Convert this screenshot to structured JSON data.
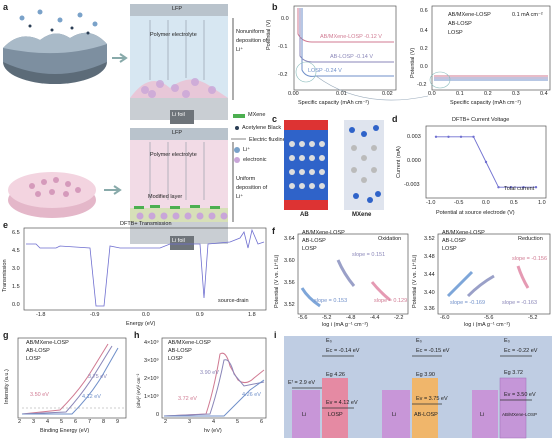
{
  "panels": {
    "a": {
      "label": "a",
      "lfp": "LFP",
      "poly": "Polymer electrolyte",
      "nonuniform": "Nonuniform deposition of Li⁺",
      "mxene": "MXene",
      "ab": "Acetylene Black",
      "flux": "Electric fluxline",
      "li": "Li⁺",
      "electronic": "electronic",
      "lifoil": "Li foil",
      "modified": "Modified layer",
      "uniform": "Uniform deposition of Li⁺"
    },
    "b": {
      "label": "b",
      "xlabel": "Specific capacity (mAh cm⁻²)",
      "ylabel": "Potential (V)",
      "cd": "0.1 mA cm⁻²",
      "series": [
        {
          "name": "AB/MXene-LOSP",
          "color": "#d07a92",
          "annot": "AB/MXene-LOSP -0.12 V"
        },
        {
          "name": "AB-LOSP",
          "color": "#8a86b8",
          "annot": "AB-LOSP -0.14 V"
        },
        {
          "name": "LOSP",
          "color": "#6f8fc9",
          "annot": "LOSP -0.24 V"
        }
      ],
      "left": {
        "xticks": [
          "0.00",
          "0.01",
          "0.02"
        ],
        "yticks": [
          "0.0",
          "-0.1",
          "-0.2"
        ]
      },
      "right": {
        "xticks": [
          "0.0",
          "0.1",
          "0.2",
          "0.3",
          "0.4"
        ],
        "yticks": [
          "0.6",
          "0.4",
          "0.2",
          "0.0",
          "-0.2"
        ]
      }
    },
    "c": {
      "label": "c",
      "ab": "AB",
      "mxene": "MXene"
    },
    "d": {
      "label": "d",
      "title": "DFTB+ Current Voltage",
      "xlabel": "Potential at source electrode (V)",
      "ylabel": "Current (mA)",
      "legend": "Total current",
      "xticks": [
        "-1.0",
        "-0.5",
        "0.0",
        "0.5",
        "1.0"
      ],
      "yticks": [
        "0.003",
        "0.000",
        "-0.003"
      ],
      "chart_data": {
        "type": "line",
        "x": [
          -1.0,
          -0.75,
          -0.5,
          -0.25,
          0.0,
          0.25,
          0.5,
          0.75,
          1.0
        ],
        "y": [
          0.0035,
          0.0035,
          0.0035,
          0.0035,
          0.0,
          -0.0035,
          -0.0035,
          -0.0035,
          -0.0035
        ]
      }
    },
    "e": {
      "label": "e",
      "title": "DFTB+ Transmission",
      "xlabel": "Energy (eV)",
      "ylabel": "Transmission",
      "legend": "source-drain",
      "xticks": [
        "-1.8",
        "-0.9",
        "0.0",
        "0.9",
        "1.8"
      ],
      "yticks": [
        "6.5",
        "4.5",
        "3.0",
        "1.5",
        "0.0"
      ]
    },
    "f": {
      "label": "f",
      "ylabel": "Potential (V vs. Li⁺/Li)",
      "xlabel": "log i (mA g⁻¹ cm⁻²)",
      "ox": {
        "title": "Oxidation",
        "slopes": [
          "slope = 0.151",
          "slope = 0.153",
          "slope = 0.129"
        ],
        "yticks": [
          "3.64",
          "3.60",
          "3.56",
          "3.52"
        ],
        "xticks": [
          "-5.6",
          "-5.2",
          "-4.8",
          "-4.4",
          "-2.2"
        ]
      },
      "red": {
        "title": "Reduction",
        "slopes": [
          "slope = -0.156",
          "slope = -0.169",
          "slope = -0.163"
        ],
        "yticks": [
          "3.52",
          "3.48",
          "3.44",
          "3.40",
          "3.36"
        ],
        "xticks": [
          "-6.0",
          "-5.6",
          "-5.2"
        ]
      },
      "legend": [
        "AB/MXene-LOSP",
        "AB-LOSP",
        "LOSP"
      ]
    },
    "g": {
      "label": "g",
      "xlabel": "Binding Energy (eV)",
      "ylabel": "Intensity (a.u.)",
      "legend": [
        "AB/MXene-LOSP",
        "AB-LOSP",
        "LOSP"
      ],
      "values": [
        "3.50 eV",
        "3.75 eV",
        "4.12 eV"
      ],
      "xticks": [
        "2",
        "3",
        "4",
        "5",
        "6",
        "7",
        "8",
        "9"
      ]
    },
    "h": {
      "label": "h",
      "xlabel": "hv (eV)",
      "ylabel": "(αhv)² (eV)² cm⁻²",
      "legend": [
        "AB/MXene-LOSP",
        "AB-LOSP",
        "LOSP"
      ],
      "values": [
        "3.90 eV",
        "3.72 eV",
        "4.26 eV"
      ],
      "xticks": [
        "2",
        "3",
        "4",
        "5",
        "6"
      ],
      "yticks": [
        "4×10⁹",
        "3×10⁹",
        "2×10⁹",
        "1×10⁹",
        "0"
      ]
    },
    "i": {
      "label": "i",
      "cols": [
        {
          "name": "LOSP",
          "ec": "Eᴄ = -0.14 eV",
          "eg": "Eg 4.26",
          "ev": "Eᴠ = 4.12 eV",
          "color": "#e58aa3"
        },
        {
          "name": "AB-LOSP",
          "ec": "Eᴄ = -0.15 eV",
          "eg": "Eg 3.90",
          "ev": "Eᴠ = 3.75 eV",
          "color": "#f0b66b"
        },
        {
          "name": "AB/MXene-LOSP",
          "ec": "Eᴄ = -0.22 eV",
          "eg": "Eg 3.72",
          "ev": "Eᴠ = 3.50 eV",
          "color": "#c596d8"
        }
      ],
      "li": "Li",
      "ef": "Eᶠ = 2.9 eV",
      "e0": "E₀"
    }
  }
}
